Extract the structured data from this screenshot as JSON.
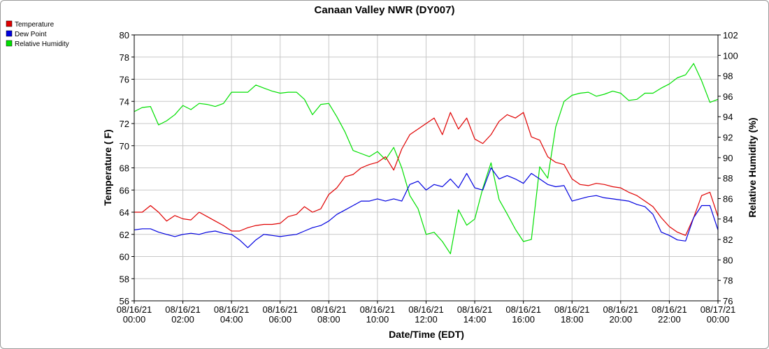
{
  "chart_data": {
    "type": "line",
    "title": "Canaan Valley NWR (DY007)",
    "xlabel": "Date/Time (EDT)",
    "ylabel_left": "Temperature ( F)",
    "ylabel_right": "Relative Humidity (%)",
    "ylim_left": [
      56,
      80
    ],
    "ylim_right": [
      76,
      102
    ],
    "xlim_hours": [
      0,
      24
    ],
    "y_ticks_left": [
      "56",
      "58",
      "60",
      "62",
      "64",
      "66",
      "68",
      "70",
      "72",
      "74",
      "76",
      "78",
      "80"
    ],
    "y_ticks_right": [
      "76",
      "78",
      "80",
      "82",
      "84",
      "86",
      "88",
      "90",
      "92",
      "94",
      "96",
      "98",
      "100",
      "102"
    ],
    "x_ticks": [
      {
        "date": "08/16/21",
        "time": "00:00"
      },
      {
        "date": "08/16/21",
        "time": "02:00"
      },
      {
        "date": "08/16/21",
        "time": "04:00"
      },
      {
        "date": "08/16/21",
        "time": "06:00"
      },
      {
        "date": "08/16/21",
        "time": "08:00"
      },
      {
        "date": "08/16/21",
        "time": "10:00"
      },
      {
        "date": "08/16/21",
        "time": "12:00"
      },
      {
        "date": "08/16/21",
        "time": "14:00"
      },
      {
        "date": "08/16/21",
        "time": "16:00"
      },
      {
        "date": "08/16/21",
        "time": "18:00"
      },
      {
        "date": "08/16/21",
        "time": "20:00"
      },
      {
        "date": "08/16/21",
        "time": "22:00"
      },
      {
        "date": "08/17/21",
        "time": "00:00"
      }
    ],
    "grid": true,
    "legend_position": "top-left",
    "series": [
      {
        "name": "Temperature",
        "axis": "left",
        "color": "#e00000",
        "x": [
          0,
          0.33,
          0.67,
          1,
          1.33,
          1.67,
          2,
          2.33,
          2.67,
          3,
          3.33,
          3.67,
          4,
          4.33,
          4.67,
          5,
          5.33,
          5.67,
          6,
          6.33,
          6.67,
          7,
          7.33,
          7.67,
          8,
          8.33,
          8.67,
          9,
          9.33,
          9.67,
          10,
          10.33,
          10.67,
          11,
          11.33,
          11.67,
          12,
          12.33,
          12.67,
          13,
          13.33,
          13.67,
          14,
          14.33,
          14.67,
          15,
          15.33,
          15.67,
          16,
          16.33,
          16.67,
          17,
          17.33,
          17.67,
          18,
          18.33,
          18.67,
          19,
          19.33,
          19.67,
          20,
          20.33,
          20.67,
          21,
          21.33,
          21.67,
          22,
          22.33,
          22.67,
          23,
          23.33,
          23.67,
          24
        ],
        "values": [
          64.0,
          64.0,
          64.6,
          64.0,
          63.2,
          63.7,
          63.4,
          63.3,
          64.0,
          63.6,
          63.2,
          62.8,
          62.3,
          62.3,
          62.6,
          62.8,
          62.9,
          62.9,
          63.0,
          63.6,
          63.8,
          64.5,
          64.0,
          64.3,
          65.6,
          66.2,
          67.2,
          67.4,
          68.0,
          68.3,
          68.5,
          69.0,
          67.8,
          69.7,
          71.0,
          71.5,
          72.0,
          72.5,
          71.0,
          73.0,
          71.5,
          72.5,
          70.6,
          70.2,
          71.0,
          72.2,
          72.8,
          72.5,
          73.0,
          70.8,
          70.5,
          69.0,
          68.5,
          68.3,
          67.0,
          66.5,
          66.4,
          66.6,
          66.5,
          66.3,
          66.2,
          65.8,
          65.5,
          65.0,
          64.5,
          63.5,
          62.7,
          62.2,
          61.9,
          63.5,
          65.5,
          65.8,
          63.6
        ]
      },
      {
        "name": "Dew Point",
        "axis": "left",
        "color": "#0000e0",
        "x": [
          0,
          0.33,
          0.67,
          1,
          1.33,
          1.67,
          2,
          2.33,
          2.67,
          3,
          3.33,
          3.67,
          4,
          4.33,
          4.67,
          5,
          5.33,
          5.67,
          6,
          6.33,
          6.67,
          7,
          7.33,
          7.67,
          8,
          8.33,
          8.67,
          9,
          9.33,
          9.67,
          10,
          10.33,
          10.67,
          11,
          11.33,
          11.67,
          12,
          12.33,
          12.67,
          13,
          13.33,
          13.67,
          14,
          14.33,
          14.67,
          15,
          15.33,
          15.67,
          16,
          16.33,
          16.67,
          17,
          17.33,
          17.67,
          18,
          18.33,
          18.67,
          19,
          19.33,
          19.67,
          20,
          20.33,
          20.67,
          21,
          21.33,
          21.67,
          22,
          22.33,
          22.67,
          23,
          23.33,
          23.67,
          24
        ],
        "values": [
          62.4,
          62.5,
          62.5,
          62.2,
          62.0,
          61.8,
          62.0,
          62.1,
          62.0,
          62.2,
          62.3,
          62.1,
          62.0,
          61.5,
          60.8,
          61.5,
          62.0,
          61.9,
          61.8,
          61.9,
          62.0,
          62.3,
          62.6,
          62.8,
          63.2,
          63.8,
          64.2,
          64.6,
          65.0,
          65.0,
          65.2,
          65.0,
          65.2,
          65.0,
          66.5,
          66.8,
          66.0,
          66.5,
          66.3,
          67.0,
          66.2,
          67.5,
          66.2,
          66.0,
          68.0,
          67.0,
          67.3,
          67.0,
          66.6,
          67.5,
          67.0,
          66.5,
          66.3,
          66.4,
          65.0,
          65.2,
          65.4,
          65.5,
          65.3,
          65.2,
          65.1,
          65.0,
          64.7,
          64.5,
          63.8,
          62.2,
          61.9,
          61.5,
          61.4,
          63.5,
          64.6,
          64.6,
          62.4
        ]
      },
      {
        "name": "Relative Humidity",
        "axis": "right",
        "color": "#00e000",
        "x": [
          0,
          0.33,
          0.67,
          1,
          1.33,
          1.67,
          2,
          2.33,
          2.67,
          3,
          3.33,
          3.67,
          4,
          4.33,
          4.67,
          5,
          5.33,
          5.67,
          6,
          6.33,
          6.67,
          7,
          7.33,
          7.67,
          8,
          8.33,
          8.67,
          9,
          9.33,
          9.67,
          10,
          10.33,
          10.67,
          11,
          11.33,
          11.67,
          12,
          12.33,
          12.67,
          13,
          13.33,
          13.67,
          14,
          14.33,
          14.67,
          15,
          15.33,
          15.67,
          16,
          16.33,
          16.67,
          17,
          17.33,
          17.67,
          18,
          18.33,
          18.67,
          19,
          19.33,
          19.67,
          20,
          20.33,
          20.67,
          21,
          21.33,
          21.67,
          22,
          22.33,
          22.67,
          23,
          23.33,
          23.67,
          24
        ],
        "values": [
          94.5,
          94.9,
          95.0,
          93.2,
          93.6,
          94.2,
          95.1,
          94.7,
          95.3,
          95.2,
          95.0,
          95.3,
          96.4,
          96.4,
          96.4,
          97.1,
          96.8,
          96.5,
          96.3,
          96.4,
          96.4,
          95.7,
          94.2,
          95.2,
          95.3,
          94.0,
          92.5,
          90.7,
          90.4,
          90.1,
          90.6,
          89.8,
          91.0,
          89.0,
          86.3,
          85.0,
          82.5,
          82.7,
          81.8,
          80.6,
          84.9,
          83.4,
          84.0,
          87.0,
          89.5,
          85.9,
          84.5,
          83.0,
          81.8,
          82.0,
          89.1,
          88.0,
          93.0,
          95.5,
          96.1,
          96.3,
          96.4,
          96.0,
          96.2,
          96.5,
          96.3,
          95.6,
          95.7,
          96.3,
          96.3,
          96.8,
          97.2,
          97.8,
          98.1,
          99.2,
          97.5,
          95.4,
          95.7
        ]
      }
    ]
  }
}
